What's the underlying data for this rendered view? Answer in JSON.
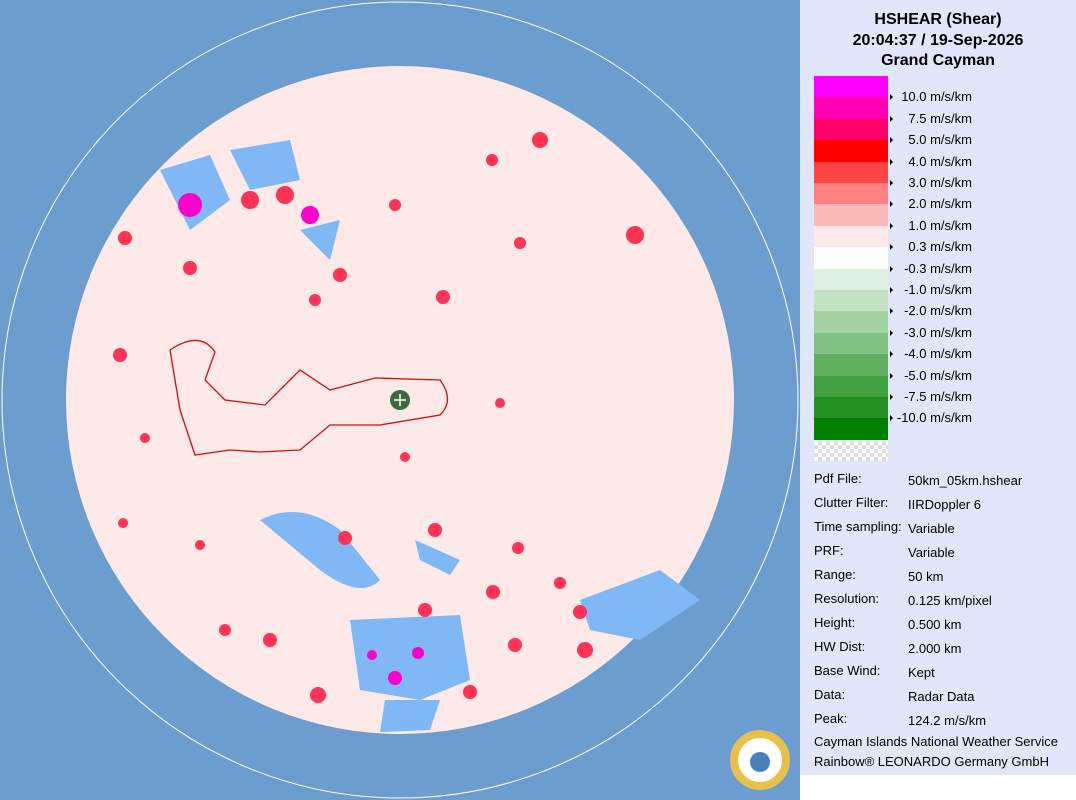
{
  "header": {
    "title": "HSHEAR (Shear)",
    "time": "20:04:37 / 19-Sep-2026",
    "site": "Grand Cayman"
  },
  "legend": {
    "labels": [
      "10.0 m/s/km",
      "7.5 m/s/km",
      "5.0 m/s/km",
      "4.0 m/s/km",
      "3.0 m/s/km",
      "2.0 m/s/km",
      "1.0 m/s/km",
      "0.3 m/s/km",
      "-0.3 m/s/km",
      "-1.0 m/s/km",
      "-2.0 m/s/km",
      "-3.0 m/s/km",
      "-4.0 m/s/km",
      "-5.0 m/s/km",
      "-7.5 m/s/km",
      "-10.0 m/s/km"
    ],
    "colors": [
      "#ff00ff",
      "#ff00b4",
      "#ff0066",
      "#ff0000",
      "#ff4444",
      "#ff8080",
      "#ffb8b8",
      "#ffe8e8",
      "#ffffff",
      "#e0f0e0",
      "#c2e2c2",
      "#a2d2a2",
      "#82c282",
      "#60b060",
      "#40a040",
      "#229022",
      "#008000"
    ]
  },
  "info": {
    "rows": [
      [
        "Pdf File:",
        "50km_05km.hshear"
      ],
      [
        "Clutter Filter:",
        "IIRDoppler 6"
      ],
      [
        "Time sampling:",
        "Variable"
      ],
      [
        "PRF:",
        "Variable"
      ],
      [
        "Range:",
        "50 km"
      ],
      [
        "Resolution:",
        "0.125 km/pixel"
      ],
      [
        "Height:",
        "0.500 km"
      ],
      [
        "HW Dist:",
        "2.000 km"
      ],
      [
        "Base Wind:",
        "Kept"
      ],
      [
        "Data:",
        "Radar Data"
      ],
      [
        "Peak:",
        "124.2 m/s/km"
      ]
    ]
  },
  "footer": {
    "line1": "Cayman Islands National Weather Service",
    "line2": "Rainbow® LEONARDO Germany GmbH"
  }
}
